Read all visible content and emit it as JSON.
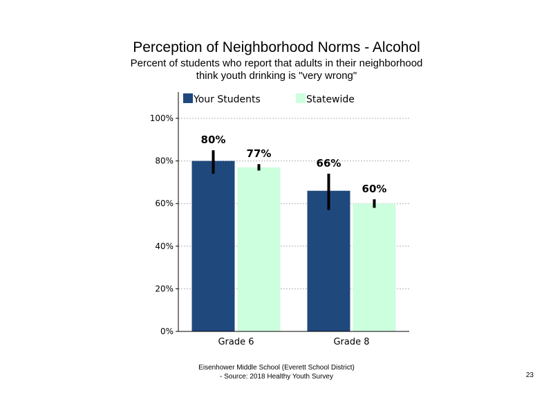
{
  "footer": {
    "line1": "Eisenhower Middle School (Everett School District)",
    "line2": "- Source: 2018 Healthy  Youth Survey",
    "page_number": "23"
  },
  "chart_data": {
    "type": "bar",
    "title": "Perception of Neighborhood Norms - Alcohol",
    "subtitle_lines": [
      "Percent of students who report that adults in their neighborhood",
      "think youth drinking is \"very wrong\""
    ],
    "categories": [
      "Grade 6",
      "Grade 8"
    ],
    "series": [
      {
        "name": "Your Students",
        "color": "#1F497D",
        "values": [
          80,
          66
        ],
        "labels": [
          "80%",
          "66%"
        ],
        "error_low": [
          74,
          57
        ],
        "error_high": [
          85,
          74
        ]
      },
      {
        "name": "Statewide",
        "color": "#CCFFDD",
        "values": [
          77,
          60
        ],
        "labels": [
          "77%",
          "60%"
        ],
        "error_low": [
          75.5,
          58
        ],
        "error_high": [
          78.5,
          62
        ]
      }
    ],
    "ylim": [
      0,
      100
    ],
    "yticks": [
      0,
      20,
      40,
      60,
      80,
      100
    ],
    "ytick_labels": [
      "0%",
      "20%",
      "40%",
      "60%",
      "80%",
      "100%"
    ],
    "grid": true,
    "legend_position": "top"
  }
}
